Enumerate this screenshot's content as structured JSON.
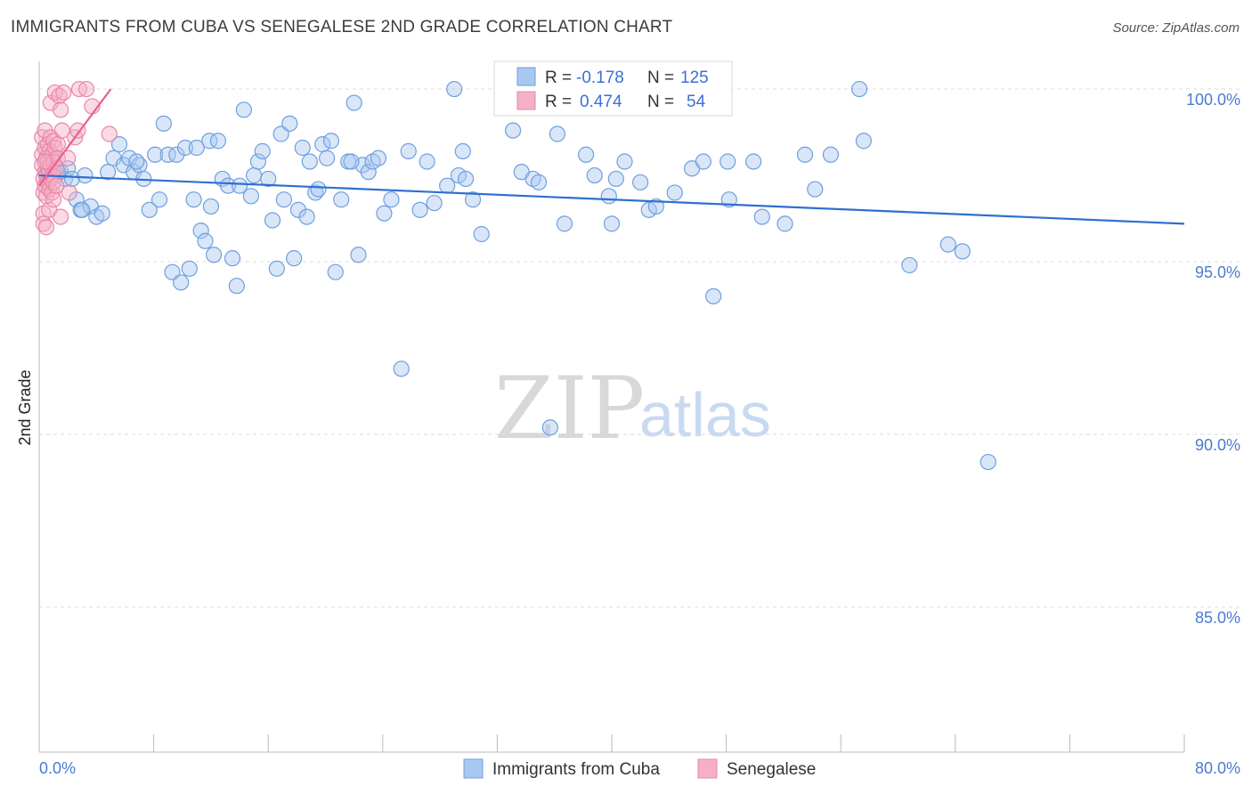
{
  "header": {
    "title": "IMMIGRANTS FROM CUBA VS SENEGALESE 2ND GRADE CORRELATION CHART",
    "source": "Source: ZipAtlas.com"
  },
  "watermark": {
    "zip": "ZIP",
    "atlas": "atlas"
  },
  "legend_box": {
    "rows": [
      {
        "r_label": "R =",
        "r_value": "-0.178",
        "n_label": "N =",
        "n_value": "125",
        "color": "#a9c8f0"
      },
      {
        "r_label": "R =",
        "r_value": "0.474",
        "n_label": "N =",
        "n_value": "54",
        "color": "#f5b0c6"
      }
    ]
  },
  "chart_data": {
    "type": "scatter",
    "title": "IMMIGRANTS FROM CUBA VS SENEGALESE 2ND GRADE CORRELATION CHART",
    "xlabel": "",
    "ylabel": "2nd Grade",
    "xlim": [
      0,
      80
    ],
    "ylim": [
      80.8,
      100.8
    ],
    "x_tick_labels": [
      "0.0%",
      "80.0%"
    ],
    "y_ticks": [
      85,
      90,
      95,
      100
    ],
    "y_tick_labels": [
      "85.0%",
      "90.0%",
      "95.0%",
      "100.0%"
    ],
    "grid": "horizontal dashed",
    "legend_position": "bottom",
    "series": [
      {
        "name": "Immigrants from Cuba",
        "color": "#a9c8f0",
        "stroke": "#6f9fdf",
        "trend": {
          "x": [
            0,
            80
          ],
          "y": [
            97.5,
            96.1
          ],
          "color": "#2f6fd1"
        },
        "points": [
          [
            0.8,
            98.0
          ],
          [
            1.1,
            97.6
          ],
          [
            1.5,
            97.6
          ],
          [
            1.8,
            97.4
          ],
          [
            2.0,
            97.7
          ],
          [
            2.3,
            97.4
          ],
          [
            2.6,
            96.8
          ],
          [
            2.9,
            96.5
          ],
          [
            3.2,
            97.5
          ],
          [
            3.6,
            96.6
          ],
          [
            4.0,
            96.3
          ],
          [
            4.4,
            96.4
          ],
          [
            4.8,
            97.6
          ],
          [
            5.2,
            98.0
          ],
          [
            5.6,
            98.4
          ],
          [
            5.9,
            97.8
          ],
          [
            6.3,
            98.0
          ],
          [
            6.6,
            97.6
          ],
          [
            7.0,
            97.8
          ],
          [
            7.3,
            97.4
          ],
          [
            7.7,
            96.5
          ],
          [
            8.1,
            98.1
          ],
          [
            8.4,
            96.8
          ],
          [
            8.7,
            99.0
          ],
          [
            9.0,
            98.1
          ],
          [
            9.3,
            94.7
          ],
          [
            9.6,
            98.1
          ],
          [
            9.9,
            94.4
          ],
          [
            10.2,
            98.3
          ],
          [
            10.5,
            94.8
          ],
          [
            10.8,
            96.8
          ],
          [
            11.0,
            98.3
          ],
          [
            11.3,
            95.9
          ],
          [
            11.6,
            95.6
          ],
          [
            11.9,
            98.5
          ],
          [
            12.2,
            95.2
          ],
          [
            12.5,
            98.5
          ],
          [
            12.8,
            97.4
          ],
          [
            13.2,
            97.2
          ],
          [
            13.5,
            95.1
          ],
          [
            13.8,
            94.3
          ],
          [
            14.0,
            97.2
          ],
          [
            14.3,
            99.4
          ],
          [
            14.8,
            96.9
          ],
          [
            15.0,
            97.5
          ],
          [
            15.3,
            97.9
          ],
          [
            15.6,
            98.2
          ],
          [
            16.0,
            97.4
          ],
          [
            16.3,
            96.2
          ],
          [
            16.6,
            94.8
          ],
          [
            16.9,
            98.7
          ],
          [
            17.1,
            96.8
          ],
          [
            17.5,
            99.0
          ],
          [
            17.8,
            95.1
          ],
          [
            18.1,
            96.5
          ],
          [
            18.4,
            98.3
          ],
          [
            18.7,
            96.3
          ],
          [
            18.9,
            97.9
          ],
          [
            19.3,
            97.0
          ],
          [
            19.5,
            97.1
          ],
          [
            19.8,
            98.4
          ],
          [
            20.1,
            98.0
          ],
          [
            20.4,
            98.5
          ],
          [
            20.7,
            94.7
          ],
          [
            21.1,
            96.8
          ],
          [
            21.6,
            97.9
          ],
          [
            22.0,
            99.6
          ],
          [
            22.3,
            95.2
          ],
          [
            22.6,
            97.8
          ],
          [
            23.0,
            97.6
          ],
          [
            23.3,
            97.9
          ],
          [
            23.7,
            98.0
          ],
          [
            24.1,
            96.4
          ],
          [
            24.6,
            96.8
          ],
          [
            25.3,
            91.9
          ],
          [
            25.8,
            98.2
          ],
          [
            26.6,
            96.5
          ],
          [
            27.1,
            97.9
          ],
          [
            27.6,
            96.7
          ],
          [
            28.5,
            97.2
          ],
          [
            29.0,
            100.0
          ],
          [
            29.3,
            97.5
          ],
          [
            29.6,
            98.2
          ],
          [
            29.8,
            97.4
          ],
          [
            30.3,
            96.8
          ],
          [
            30.9,
            95.8
          ],
          [
            33.1,
            98.8
          ],
          [
            33.7,
            97.6
          ],
          [
            34.5,
            97.4
          ],
          [
            34.9,
            97.3
          ],
          [
            35.7,
            90.2
          ],
          [
            36.2,
            98.7
          ],
          [
            36.7,
            96.1
          ],
          [
            38.2,
            98.1
          ],
          [
            38.8,
            97.5
          ],
          [
            39.8,
            96.9
          ],
          [
            40.0,
            96.1
          ],
          [
            40.3,
            97.4
          ],
          [
            40.9,
            97.9
          ],
          [
            42.0,
            97.3
          ],
          [
            42.6,
            96.5
          ],
          [
            43.1,
            96.6
          ],
          [
            44.4,
            97.0
          ],
          [
            45.6,
            97.7
          ],
          [
            46.4,
            97.9
          ],
          [
            47.1,
            94.0
          ],
          [
            48.1,
            97.9
          ],
          [
            48.2,
            96.8
          ],
          [
            49.9,
            97.9
          ],
          [
            50.5,
            96.3
          ],
          [
            52.1,
            96.1
          ],
          [
            53.5,
            98.1
          ],
          [
            54.2,
            97.1
          ],
          [
            55.3,
            98.1
          ],
          [
            57.3,
            100.0
          ],
          [
            57.6,
            98.5
          ],
          [
            60.8,
            94.9
          ],
          [
            63.5,
            95.5
          ],
          [
            64.5,
            95.3
          ],
          [
            66.3,
            89.2
          ],
          [
            1.3,
            97.6
          ],
          [
            3.0,
            96.5
          ],
          [
            6.8,
            97.9
          ],
          [
            12.0,
            96.6
          ],
          [
            21.8,
            97.9
          ]
        ]
      },
      {
        "name": "Senegalese",
        "color": "#f5b0c6",
        "stroke": "#ea86a7",
        "trend": {
          "x": [
            0,
            5.0
          ],
          "y": [
            97.2,
            100.0
          ],
          "color": "#e8608e"
        },
        "points": [
          [
            0.2,
            98.6
          ],
          [
            0.2,
            98.1
          ],
          [
            0.2,
            97.8
          ],
          [
            0.3,
            97.4
          ],
          [
            0.3,
            97.0
          ],
          [
            0.3,
            96.4
          ],
          [
            0.3,
            96.1
          ],
          [
            0.4,
            98.3
          ],
          [
            0.4,
            97.6
          ],
          [
            0.4,
            97.2
          ],
          [
            0.4,
            98.8
          ],
          [
            0.5,
            98.0
          ],
          [
            0.5,
            97.5
          ],
          [
            0.5,
            96.9
          ],
          [
            0.5,
            96.0
          ],
          [
            0.6,
            98.4
          ],
          [
            0.6,
            97.7
          ],
          [
            0.6,
            97.3
          ],
          [
            0.6,
            97.9
          ],
          [
            0.7,
            98.2
          ],
          [
            0.7,
            97.6
          ],
          [
            0.7,
            97.1
          ],
          [
            0.7,
            96.5
          ],
          [
            0.8,
            99.6
          ],
          [
            0.8,
            98.6
          ],
          [
            0.8,
            97.8
          ],
          [
            0.8,
            97.4
          ],
          [
            0.9,
            98.1
          ],
          [
            0.9,
            97.5
          ],
          [
            0.9,
            97.0
          ],
          [
            1.0,
            98.5
          ],
          [
            1.0,
            97.9
          ],
          [
            1.0,
            97.3
          ],
          [
            1.0,
            96.8
          ],
          [
            1.1,
            99.9
          ],
          [
            1.1,
            98.3
          ],
          [
            1.2,
            97.7
          ],
          [
            1.2,
            97.2
          ],
          [
            1.3,
            98.4
          ],
          [
            1.3,
            98.0
          ],
          [
            1.4,
            99.8
          ],
          [
            1.5,
            96.3
          ],
          [
            1.5,
            99.4
          ],
          [
            1.6,
            98.8
          ],
          [
            1.7,
            99.9
          ],
          [
            2.0,
            98.0
          ],
          [
            2.1,
            97.0
          ],
          [
            2.5,
            98.6
          ],
          [
            2.7,
            98.8
          ],
          [
            2.8,
            100.0
          ],
          [
            3.3,
            100.0
          ],
          [
            3.7,
            99.5
          ],
          [
            4.9,
            98.7
          ],
          [
            0.4,
            97.9
          ]
        ]
      }
    ]
  },
  "x_axis": {
    "left_label": "0.0%",
    "right_label": "80.0%"
  },
  "y_axis": {
    "label": "2nd Grade"
  },
  "bottom_legend": [
    {
      "label": "Immigrants from Cuba",
      "color": "#a9c8f0"
    },
    {
      "label": "Senegalese",
      "color": "#f5b0c6"
    }
  ]
}
